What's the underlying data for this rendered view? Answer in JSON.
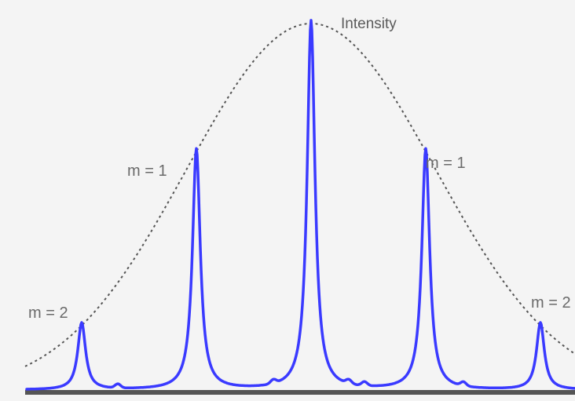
{
  "figure": {
    "intensity_label": "Intensity",
    "orders": [
      {
        "id": "left-2",
        "label": "m = 2"
      },
      {
        "id": "left-1",
        "label": "m = 1"
      },
      {
        "id": "right-1",
        "label": "m = 1"
      },
      {
        "id": "right-2",
        "label": "m = 2"
      }
    ],
    "colors": {
      "peaks": "#3a3aff",
      "envelope": "#555555",
      "baseline": "#555555",
      "background": "#f4f4f4"
    }
  }
}
